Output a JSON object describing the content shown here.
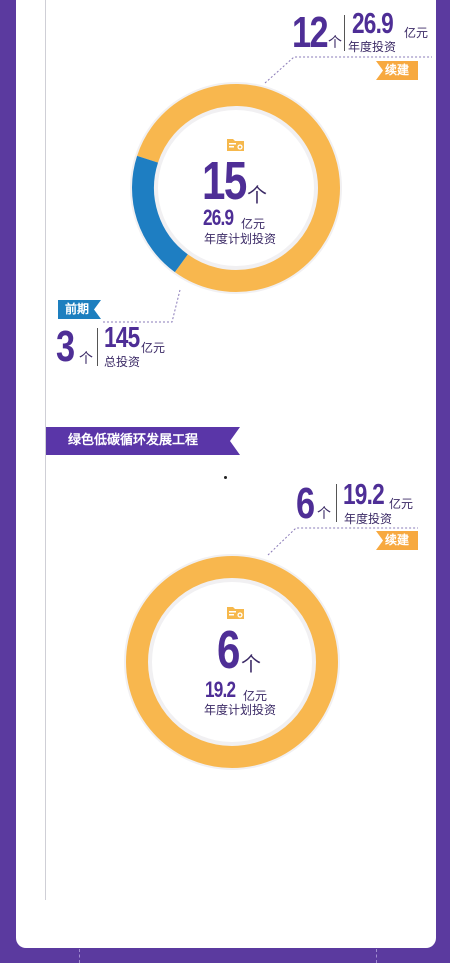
{
  "chart_data": [
    {
      "type": "pie",
      "center_label": {
        "count": "15",
        "count_unit": "个",
        "amount": "26.9",
        "amount_unit": "亿元",
        "caption": "年度计划投资"
      },
      "slices": [
        {
          "name": "续建",
          "count": 12,
          "color": "#f8b74e"
        },
        {
          "name": "前期",
          "count": 3,
          "color": "#1e7ec2"
        }
      ],
      "callouts": [
        {
          "label": "续建",
          "count": "12",
          "count_unit": "个",
          "amount": "26.9",
          "amount_unit": "亿元",
          "caption": "年度投资"
        },
        {
          "label": "前期",
          "count": "3",
          "count_unit": "个",
          "amount": "145",
          "amount_unit": "亿元",
          "caption": "总投资"
        }
      ]
    },
    {
      "type": "pie",
      "section_title": "绿色低碳循环发展工程",
      "center_label": {
        "count": "6",
        "count_unit": "个",
        "amount": "19.2",
        "amount_unit": "亿元",
        "caption": "年度计划投资"
      },
      "slices": [
        {
          "name": "续建",
          "count": 6,
          "color": "#f8b74e"
        }
      ],
      "callouts": [
        {
          "label": "续建",
          "count": "6",
          "count_unit": "个",
          "amount": "19.2",
          "amount_unit": "亿元",
          "caption": "年度投资"
        }
      ]
    }
  ]
}
